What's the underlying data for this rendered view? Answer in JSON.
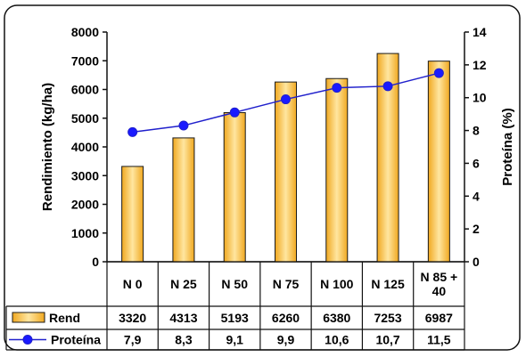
{
  "chart_data": {
    "type": "bar",
    "categories": [
      [
        "N 0"
      ],
      [
        "N 25"
      ],
      [
        "N 50"
      ],
      [
        "N 75"
      ],
      [
        "N 100"
      ],
      [
        "N 125"
      ],
      [
        "N 85 +",
        "40"
      ]
    ],
    "series": [
      {
        "name": "Rend",
        "kind": "bar",
        "axis": "left",
        "values": [
          3320,
          4313,
          5193,
          6260,
          6380,
          7253,
          6987
        ],
        "labels": [
          "3320",
          "4313",
          "5193",
          "6260",
          "6380",
          "7253",
          "6987"
        ]
      },
      {
        "name": "Proteína",
        "kind": "line",
        "axis": "right",
        "values": [
          7.9,
          8.3,
          9.1,
          9.9,
          10.6,
          10.7,
          11.5
        ],
        "labels": [
          "7,9",
          "8,3",
          "9,1",
          "9,9",
          "10,6",
          "10,7",
          "11,5"
        ]
      }
    ],
    "ylabel": "Rendimiento (kg/ha)",
    "y2label": "Proteína (%)",
    "ylim": [
      0,
      8000
    ],
    "y2lim": [
      0,
      14
    ],
    "yticks": [
      0,
      1000,
      2000,
      3000,
      4000,
      5000,
      6000,
      7000,
      8000
    ],
    "y2ticks": [
      0,
      2,
      4,
      6,
      8,
      10,
      12,
      14
    ],
    "colors": {
      "bar_fill_center": "#ffe6a0",
      "bar_fill_edge": "#f0a820",
      "bar_stroke": "#1a1a1a",
      "line": "#2020cc",
      "marker": "#1a1aff",
      "frame": "#111111"
    },
    "grid": false,
    "legend": "data-table"
  }
}
